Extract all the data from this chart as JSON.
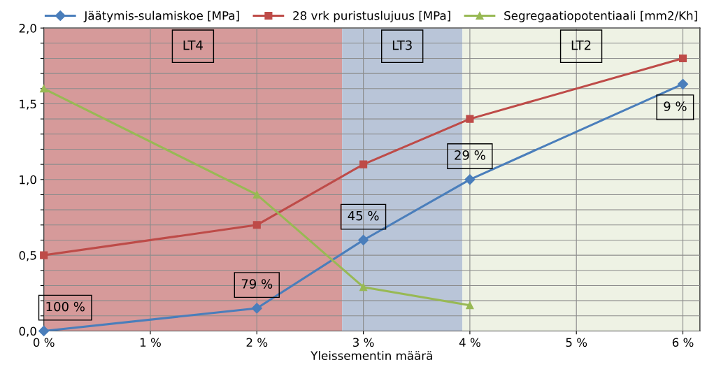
{
  "chart_data": {
    "type": "line",
    "xlabel": "Yleissementin määrä",
    "x": [
      0,
      2,
      3,
      4,
      6
    ],
    "series": [
      {
        "name": "Jäätymis-sulamiskoe [MPa]",
        "color": "#4a7ebb",
        "marker": "diamond",
        "values": [
          0,
          0.15,
          0.6,
          1.0,
          1.63
        ]
      },
      {
        "name": "28 vrk puristuslujuus [MPa]",
        "color": "#be4b48",
        "marker": "square",
        "values": [
          0.5,
          0.7,
          1.1,
          1.4,
          1.8
        ]
      },
      {
        "name": "Segregaatiopotentiaali [mm2/Kh]",
        "color": "#98b954",
        "marker": "triangle",
        "values": [
          1.6,
          0.9,
          0.29,
          0.17,
          null
        ]
      }
    ],
    "xlim": [
      0,
      6.16
    ],
    "ylim": [
      0,
      2.0
    ],
    "xticks": [
      {
        "value": 0,
        "label": "0 %"
      },
      {
        "value": 1,
        "label": "1 %"
      },
      {
        "value": 2,
        "label": "2 %"
      },
      {
        "value": 3,
        "label": "3 %"
      },
      {
        "value": 4,
        "label": "4 %"
      },
      {
        "value": 5,
        "label": "5 %"
      },
      {
        "value": 6,
        "label": "6 %"
      }
    ],
    "yticks": [
      {
        "value": 0,
        "label": "0,0"
      },
      {
        "value": 0.1,
        "label": null
      },
      {
        "value": 0.2,
        "label": null
      },
      {
        "value": 0.3,
        "label": null
      },
      {
        "value": 0.4,
        "label": null
      },
      {
        "value": 0.5,
        "label": "0,5"
      },
      {
        "value": 0.6,
        "label": null
      },
      {
        "value": 0.7,
        "label": null
      },
      {
        "value": 0.8,
        "label": null
      },
      {
        "value": 0.9,
        "label": null
      },
      {
        "value": 1.0,
        "label": "1,0"
      },
      {
        "value": 1.1,
        "label": null
      },
      {
        "value": 1.2,
        "label": null
      },
      {
        "value": 1.3,
        "label": null
      },
      {
        "value": 1.4,
        "label": null
      },
      {
        "value": 1.5,
        "label": "1,5"
      },
      {
        "value": 1.6,
        "label": null
      },
      {
        "value": 1.7,
        "label": null
      },
      {
        "value": 1.8,
        "label": null
      },
      {
        "value": 1.9,
        "label": null
      },
      {
        "value": 2.0,
        "label": "2,0"
      }
    ],
    "bands": [
      {
        "axis": "x",
        "from": 0,
        "to": 2.8,
        "label": "LT4",
        "color": "#d69a9a"
      },
      {
        "axis": "x",
        "from": 2.8,
        "to": 3.93,
        "label": "LT3",
        "color": "#b9c5d8"
      },
      {
        "axis": "x",
        "from": 3.93,
        "to": 6.16,
        "label": "LT2",
        "color": "#eef2e4"
      }
    ],
    "annotations": [
      {
        "text": "100 %",
        "x": 0,
        "y": 0
      },
      {
        "text": "79 %",
        "x": 2,
        "y": 0.15
      },
      {
        "text": "45 %",
        "x": 3,
        "y": 0.6
      },
      {
        "text": "29 %",
        "x": 4,
        "y": 1.0
      },
      {
        "text": "9 %",
        "x": 6,
        "y": 1.63
      }
    ],
    "grid": true,
    "legend": "top",
    "line_style": "solid"
  }
}
